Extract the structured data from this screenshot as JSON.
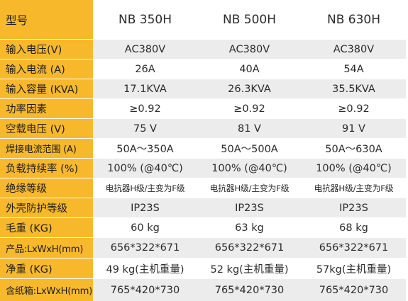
{
  "table": {
    "header": {
      "label": "型号",
      "models": [
        "NB 350H",
        "NB 500H",
        "NB 630H"
      ]
    },
    "rows": [
      {
        "label": "输入电压(V)",
        "values": [
          "AC380V",
          "AC380V",
          "AC380V"
        ]
      },
      {
        "label": "输入电流 (A)",
        "values": [
          "26A",
          "40A",
          "54A"
        ]
      },
      {
        "label": "输入容量 (KVA)",
        "values": [
          "17.1KVA",
          "26.3KVA",
          "35.5KVA"
        ]
      },
      {
        "label": "功率因素",
        "values": [
          "≥0.92",
          "≥0.92",
          "≥0.92"
        ]
      },
      {
        "label": "空载电压 (V)",
        "values": [
          "75 V",
          "81 V",
          "91 V"
        ]
      },
      {
        "label": "焊接电流范围 (A)",
        "values": [
          "50A～350A",
          "50A～500A",
          "50A～630A"
        ]
      },
      {
        "label": "负载持续率 (%)",
        "values": [
          "100% (@40℃)",
          "100% (@40℃)",
          "100% (@40℃)"
        ]
      },
      {
        "label": "绝缘等级",
        "values": [
          "电抗器H级/主变为F级",
          "电抗器H级/主变为F级",
          "电抗器H级/主变为F级"
        ]
      },
      {
        "label": "外壳防护等级",
        "values": [
          "IP23S",
          "IP23S",
          "IP23S"
        ]
      },
      {
        "label": "毛重 (KG)",
        "values": [
          "60 kg",
          "63 kg",
          "68 kg"
        ]
      },
      {
        "label": "产品:LxWxH(mm)",
        "values": [
          "656*322*671",
          "656*322*671",
          "656*322*671"
        ]
      },
      {
        "label": "净重 (KG)",
        "values": [
          "49 kg(主机重量)",
          "52 kg(主机重量)",
          "57kg(主机重量)"
        ]
      },
      {
        "label": "含纸箱:LxWxH(mm)",
        "values": [
          "765*420*730",
          "765*420*730",
          "765*420*730"
        ]
      }
    ]
  },
  "colors": {
    "label_background": "#f7b92b",
    "stripe_background": "#ececec",
    "plain_background": "#ffffff"
  }
}
